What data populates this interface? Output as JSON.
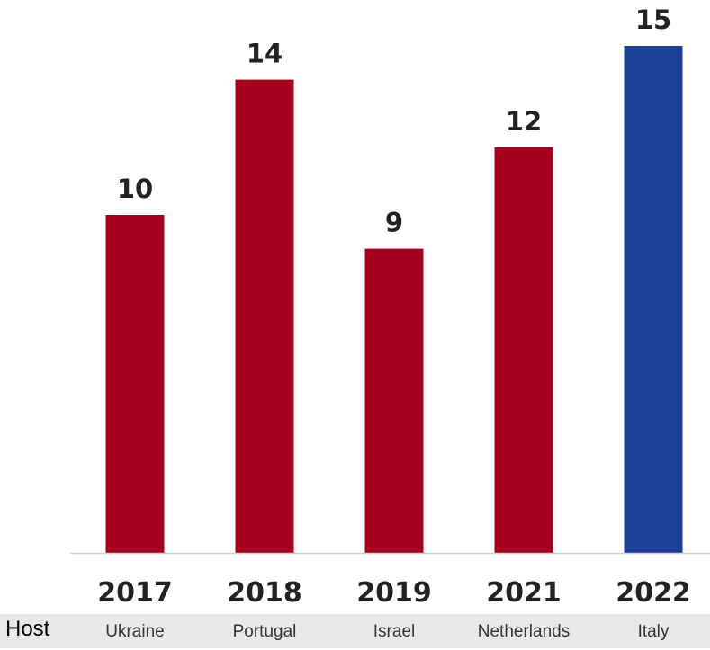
{
  "chart_data": {
    "type": "bar",
    "categories": [
      "2017",
      "2018",
      "2019",
      "2021",
      "2022"
    ],
    "values": [
      10,
      14,
      9,
      12,
      15
    ],
    "data_labels": [
      "10",
      "14",
      "9",
      "12",
      "15"
    ],
    "bar_colors": [
      "#a6001f",
      "#a6001f",
      "#a6001f",
      "#a6001f",
      "#1b3f97"
    ],
    "ylim": [
      0,
      15
    ],
    "grid": false,
    "title": "",
    "xlabel": "",
    "ylabel": ""
  },
  "host_row": {
    "label": "Host",
    "values": [
      "Ukraine",
      "Portugal",
      "Israel",
      "Netherlands",
      "Italy"
    ]
  },
  "colors": {
    "primary_bar": "#a6001f",
    "highlight_bar": "#1b3f97",
    "axis": "#d0d0d0",
    "host_background": "#e9e9e9"
  }
}
